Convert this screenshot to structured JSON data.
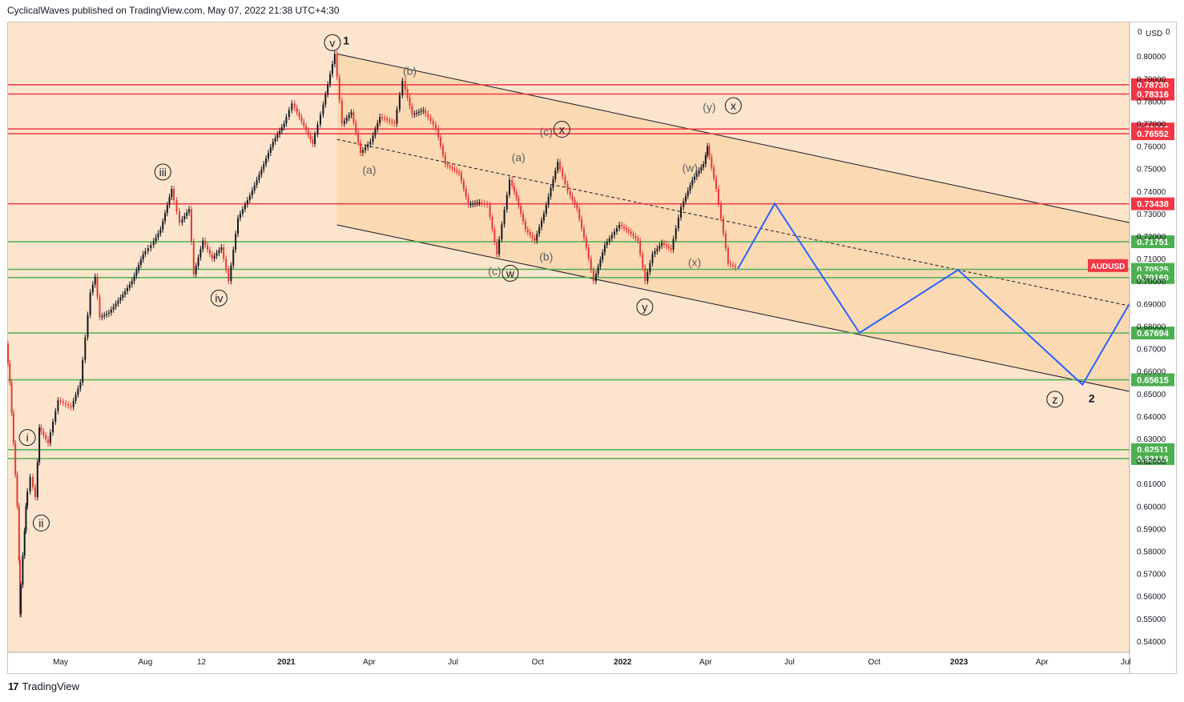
{
  "header": {
    "text": "CyclicalWaves published on TradingView.com, May 07, 2022 21:38 UTC+4:30"
  },
  "footer": {
    "logo_glyph": "17",
    "brand": "TradingView"
  },
  "colors": {
    "bg": "#fce5cc",
    "channel_fill": "#fad7ae",
    "resistance": "#f23645",
    "support": "#4caf50",
    "candle_up": "#131722",
    "candle_down": "#e53935",
    "projection": "#2962ff",
    "symbol_badge": "#f23645"
  },
  "chart_data": {
    "type": "line",
    "symbol": "AUDUSD",
    "currency": "USD",
    "scale_mode": "0",
    "y_axis_top_label": "0",
    "ylim": [
      0.535,
      0.815
    ],
    "xlim": [
      "2020-03-05",
      "2023-07-05"
    ],
    "price_ticks": [
      "0.80000",
      "0.79000",
      "0.78000",
      "0.77000",
      "0.76000",
      "0.75000",
      "0.74000",
      "0.73000",
      "0.72000",
      "0.71000",
      "0.70000",
      "0.69000",
      "0.68000",
      "0.67000",
      "0.66000",
      "0.65000",
      "0.64000",
      "0.63000",
      "0.62000",
      "0.61000",
      "0.60000",
      "0.59000",
      "0.58000",
      "0.57000",
      "0.56000",
      "0.55000",
      "0.54000"
    ],
    "time_ticks": [
      {
        "label": "May",
        "date": "2020-05-01",
        "bold": false
      },
      {
        "label": "Aug",
        "date": "2020-08-01",
        "bold": false
      },
      {
        "label": "12",
        "date": "2020-10-01",
        "bold": false
      },
      {
        "label": "2021",
        "date": "2021-01-01",
        "bold": true
      },
      {
        "label": "Apr",
        "date": "2021-04-01",
        "bold": false
      },
      {
        "label": "Jul",
        "date": "2021-07-01",
        "bold": false
      },
      {
        "label": "Oct",
        "date": "2021-10-01",
        "bold": false
      },
      {
        "label": "2022",
        "date": "2022-01-01",
        "bold": true
      },
      {
        "label": "Apr",
        "date": "2022-04-01",
        "bold": false
      },
      {
        "label": "Jul",
        "date": "2022-07-01",
        "bold": false
      },
      {
        "label": "Oct",
        "date": "2022-10-01",
        "bold": false
      },
      {
        "label": "2023",
        "date": "2023-01-01",
        "bold": true
      },
      {
        "label": "Apr",
        "date": "2023-04-01",
        "bold": false
      },
      {
        "label": "Jul",
        "date": "2023-07-01",
        "bold": false
      }
    ],
    "resistance_levels": [
      "0.78730",
      "0.78316",
      "0.76762",
      "0.76552",
      "0.73438"
    ],
    "support_levels": [
      "0.71751",
      "0.70525",
      "0.70160",
      "0.67694",
      "0.65615",
      "0.62511",
      "0.62116"
    ],
    "last_price_label": "AUDUSD",
    "last_price": 0.7055,
    "price_path": [
      [
        "2020-03-05",
        0.672
      ],
      [
        "2020-03-09",
        0.655
      ],
      [
        "2020-03-13",
        0.628
      ],
      [
        "2020-03-17",
        0.6
      ],
      [
        "2020-03-19",
        0.552
      ],
      [
        "2020-03-23",
        0.578
      ],
      [
        "2020-03-26",
        0.6
      ],
      [
        "2020-04-01",
        0.613
      ],
      [
        "2020-04-06",
        0.604
      ],
      [
        "2020-04-10",
        0.635
      ],
      [
        "2020-04-20",
        0.628
      ],
      [
        "2020-05-01",
        0.647
      ],
      [
        "2020-05-15",
        0.644
      ],
      [
        "2020-05-25",
        0.655
      ],
      [
        "2020-06-05",
        0.695
      ],
      [
        "2020-06-10",
        0.702
      ],
      [
        "2020-06-15",
        0.684
      ],
      [
        "2020-06-25",
        0.686
      ],
      [
        "2020-07-10",
        0.694
      ],
      [
        "2020-07-20",
        0.7
      ],
      [
        "2020-08-01",
        0.712
      ],
      [
        "2020-08-10",
        0.716
      ],
      [
        "2020-08-20",
        0.723
      ],
      [
        "2020-09-01",
        0.741
      ],
      [
        "2020-09-10",
        0.726
      ],
      [
        "2020-09-20",
        0.732
      ],
      [
        "2020-09-25",
        0.703
      ],
      [
        "2020-10-05",
        0.718
      ],
      [
        "2020-10-15",
        0.71
      ],
      [
        "2020-10-25",
        0.715
      ],
      [
        "2020-11-02",
        0.7
      ],
      [
        "2020-11-12",
        0.728
      ],
      [
        "2020-11-25",
        0.738
      ],
      [
        "2020-12-10",
        0.752
      ],
      [
        "2020-12-20",
        0.762
      ],
      [
        "2021-01-01",
        0.77
      ],
      [
        "2021-01-10",
        0.779
      ],
      [
        "2021-01-20",
        0.771
      ],
      [
        "2021-02-01",
        0.761
      ],
      [
        "2021-02-10",
        0.774
      ],
      [
        "2021-02-25",
        0.801
      ],
      [
        "2021-03-05",
        0.77
      ],
      [
        "2021-03-15",
        0.775
      ],
      [
        "2021-03-25",
        0.757
      ],
      [
        "2021-04-05",
        0.762
      ],
      [
        "2021-04-15",
        0.773
      ],
      [
        "2021-05-01",
        0.77
      ],
      [
        "2021-05-10",
        0.789
      ],
      [
        "2021-05-20",
        0.774
      ],
      [
        "2021-06-01",
        0.776
      ],
      [
        "2021-06-15",
        0.768
      ],
      [
        "2021-06-25",
        0.752
      ],
      [
        "2021-07-10",
        0.748
      ],
      [
        "2021-07-20",
        0.734
      ],
      [
        "2021-08-01",
        0.735
      ],
      [
        "2021-08-10",
        0.734
      ],
      [
        "2021-08-20",
        0.712
      ],
      [
        "2021-09-03",
        0.745
      ],
      [
        "2021-09-10",
        0.737
      ],
      [
        "2021-09-20",
        0.723
      ],
      [
        "2021-09-30",
        0.718
      ],
      [
        "2021-10-10",
        0.73
      ],
      [
        "2021-10-25",
        0.753
      ],
      [
        "2021-11-05",
        0.74
      ],
      [
        "2021-11-15",
        0.732
      ],
      [
        "2021-11-25",
        0.715
      ],
      [
        "2021-12-03",
        0.7
      ],
      [
        "2021-12-15",
        0.716
      ],
      [
        "2021-12-31",
        0.725
      ],
      [
        "2022-01-10",
        0.722
      ],
      [
        "2022-01-20",
        0.718
      ],
      [
        "2022-01-28",
        0.7
      ],
      [
        "2022-02-05",
        0.712
      ],
      [
        "2022-02-15",
        0.717
      ],
      [
        "2022-02-25",
        0.714
      ],
      [
        "2022-03-08",
        0.733
      ],
      [
        "2022-03-20",
        0.745
      ],
      [
        "2022-04-01",
        0.752
      ],
      [
        "2022-04-05",
        0.76
      ],
      [
        "2022-04-15",
        0.741
      ],
      [
        "2022-04-28",
        0.708
      ],
      [
        "2022-05-06",
        0.706
      ]
    ],
    "projection_path": [
      [
        "2022-05-06",
        0.7055
      ],
      [
        "2022-06-15",
        0.7345
      ],
      [
        "2022-09-15",
        0.677
      ],
      [
        "2022-12-31",
        0.705
      ],
      [
        "2023-05-15",
        0.654
      ],
      [
        "2023-07-05",
        0.69
      ]
    ],
    "channel": {
      "upper": [
        [
          "2021-02-25",
          0.801
        ],
        [
          "2023-07-05",
          0.726
        ]
      ],
      "lower": [
        [
          "2021-02-25",
          0.725
        ],
        [
          "2023-07-05",
          0.651
        ]
      ],
      "mid": [
        [
          "2021-02-25",
          0.763
        ],
        [
          "2023-07-05",
          0.689
        ]
      ]
    },
    "wave_labels": [
      {
        "text": "v",
        "date": "2021-02-20",
        "price": 0.806,
        "circle": true
      },
      {
        "text": "1",
        "date": "2021-03-07",
        "price": 0.807,
        "circle": false
      },
      {
        "text": "(b)",
        "date": "2021-05-15",
        "price": 0.7935,
        "circle": false
      },
      {
        "text": "(a)",
        "date": "2021-04-01",
        "price": 0.7495,
        "circle": false
      },
      {
        "text": "(a)",
        "date": "2021-09-10",
        "price": 0.755,
        "circle": false
      },
      {
        "text": "(c)",
        "date": "2021-10-10",
        "price": 0.7665,
        "circle": false
      },
      {
        "text": "x",
        "date": "2021-10-27",
        "price": 0.7675,
        "circle": true
      },
      {
        "text": "(b)",
        "date": "2021-10-10",
        "price": 0.711,
        "circle": false
      },
      {
        "text": "(c)",
        "date": "2021-08-15",
        "price": 0.7045,
        "circle": false
      },
      {
        "text": "w",
        "date": "2021-09-01",
        "price": 0.7035,
        "circle": true
      },
      {
        "text": "y",
        "date": "2022-01-25",
        "price": 0.6885,
        "circle": true
      },
      {
        "text": "(w)",
        "date": "2022-03-15",
        "price": 0.7505,
        "circle": false
      },
      {
        "text": "(x)",
        "date": "2022-03-20",
        "price": 0.7085,
        "circle": false
      },
      {
        "text": "(y)",
        "date": "2022-04-05",
        "price": 0.7775,
        "circle": false
      },
      {
        "text": "x",
        "date": "2022-05-01",
        "price": 0.778,
        "circle": true
      },
      {
        "text": "iii",
        "date": "2020-08-20",
        "price": 0.7485,
        "circle": true
      },
      {
        "text": "iv",
        "date": "2020-10-20",
        "price": 0.6925,
        "circle": true
      },
      {
        "text": "i",
        "date": "2020-03-26",
        "price": 0.6305,
        "circle": true
      },
      {
        "text": "ii",
        "date": "2020-04-10",
        "price": 0.5925,
        "circle": true
      },
      {
        "text": "z",
        "date": "2023-04-15",
        "price": 0.6475,
        "circle": true
      },
      {
        "text": "2",
        "date": "2023-05-25",
        "price": 0.648,
        "circle": false
      }
    ]
  }
}
